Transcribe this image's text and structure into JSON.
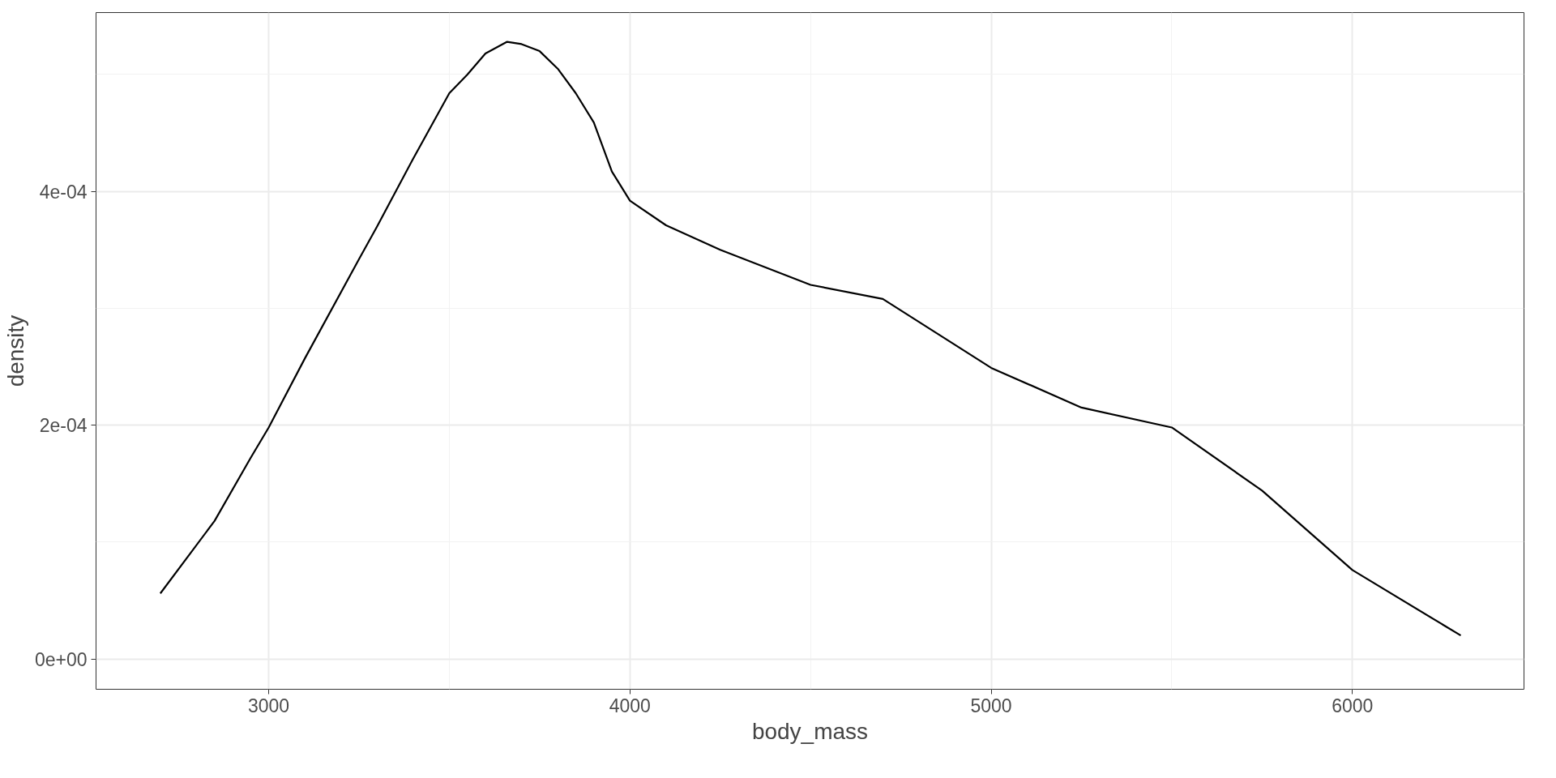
{
  "chart_data": {
    "type": "line",
    "xlabel": "body_mass",
    "ylabel": "density",
    "x": [
      2700,
      2850,
      2950,
      3000,
      3100,
      3250,
      3300,
      3400,
      3500,
      3550,
      3600,
      3660,
      3700,
      3750,
      3800,
      3850,
      3900,
      3950,
      4000,
      4100,
      4250,
      4500,
      4700,
      5000,
      5250,
      5500,
      5750,
      6000,
      6300
    ],
    "series": [
      {
        "color": "#000000",
        "values": [
          5.6e-05,
          0.000118,
          0.000172,
          0.000198,
          0.000257,
          0.000342,
          0.00037,
          0.000428,
          0.000484,
          0.0005,
          0.000518,
          0.000528,
          0.000526,
          0.00052,
          0.000505,
          0.000484,
          0.000459,
          0.000417,
          0.000392,
          0.000371,
          0.00035,
          0.00032,
          0.000308,
          0.000249,
          0.000215,
          0.000198,
          0.000144,
          7.6e-05,
          2e-05
        ]
      }
    ],
    "xlim": [
      2522,
      6475
    ],
    "ylim": [
      -2.6e-05,
      0.000553
    ],
    "xticks": [
      3000,
      4000,
      5000,
      6000
    ],
    "yticks": [
      {
        "value": 0,
        "label": "0e+00"
      },
      {
        "value": 0.0002,
        "label": "2e-04"
      },
      {
        "value": 0.0004,
        "label": "4e-04"
      }
    ],
    "grid": true,
    "marker": "none",
    "line_style": "solid"
  }
}
